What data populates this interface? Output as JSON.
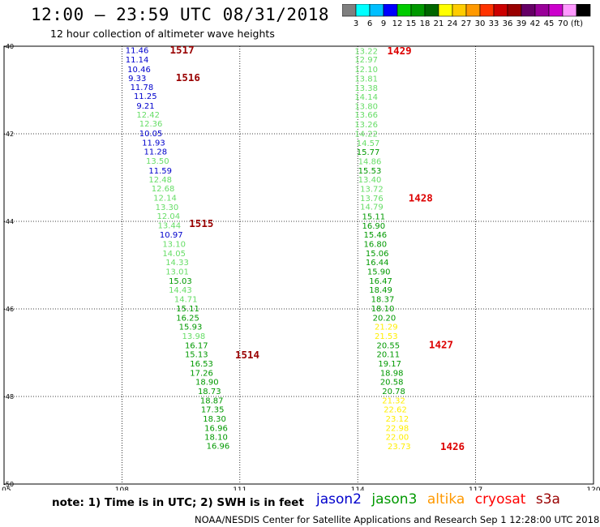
{
  "title": "12:00 — 23:59 UTC 08/31/2018",
  "subtitle": "12 hour collection of altimeter wave heights",
  "colorbar": {
    "colors": [
      "#7f7f7f",
      "#00ffff",
      "#00bfff",
      "#0000ff",
      "#00cc00",
      "#009900",
      "#006600",
      "#ffff00",
      "#ffcc00",
      "#ff9900",
      "#ff3300",
      "#cc0000",
      "#990000",
      "#660066",
      "#990099",
      "#cc00cc",
      "#ff99ff",
      "#000000"
    ],
    "labels": [
      "3",
      "6",
      "9",
      "12",
      "15",
      "18",
      "21",
      "24",
      "27",
      "30",
      "33",
      "36",
      "39",
      "42",
      "45",
      "70 (ft)"
    ]
  },
  "note": "note: 1) Time is in UTC; 2) SWH is in feet",
  "legend": [
    {
      "label": "jason2",
      "color": "#0000cc"
    },
    {
      "label": "jason3",
      "color": "#009900"
    },
    {
      "label": "altika",
      "color": "#ff9900"
    },
    {
      "label": "cryosat",
      "color": "#ff0000"
    },
    {
      "label": "s3a",
      "color": "#990000"
    }
  ],
  "credit": "NOAA/NESDIS Center for Satellite Applications and Research   Sep  1 12:28:00 UTC 2018",
  "chart_data": {
    "type": "scatter",
    "xlim": [
      105,
      120
    ],
    "ylim": [
      -50,
      -40
    ],
    "x_ticks": [
      "105",
      "108",
      "111",
      "114",
      "117",
      "120"
    ],
    "y_ticks": [
      "-40",
      "-42",
      "-44",
      "-46",
      "-48",
      "-50"
    ],
    "grid": true,
    "tracks": [
      {
        "points": [
          {
            "x": 108.09,
            "y": -40.08,
            "v": "11.46",
            "c": "#0000cc"
          },
          {
            "x": 108.09,
            "y": -40.3,
            "v": "11.14",
            "c": "#0000cc"
          },
          {
            "x": 108.14,
            "y": -40.52,
            "v": "10.46",
            "c": "#0000cc"
          },
          {
            "x": 108.16,
            "y": -40.72,
            "v": "9.33",
            "c": "#0000cc"
          },
          {
            "x": 108.21,
            "y": -40.93,
            "v": "11.78",
            "c": "#0000cc"
          },
          {
            "x": 108.3,
            "y": -41.13,
            "v": "11.25",
            "c": "#0000cc"
          },
          {
            "x": 108.37,
            "y": -41.35,
            "v": "9.21",
            "c": "#0000cc"
          },
          {
            "x": 108.37,
            "y": -41.56,
            "v": "12.42",
            "c": "#66dd66"
          },
          {
            "x": 108.44,
            "y": -41.76,
            "v": "12.36",
            "c": "#66dd66"
          },
          {
            "x": 108.44,
            "y": -41.98,
            "v": "10.05",
            "c": "#0000cc"
          },
          {
            "x": 108.51,
            "y": -42.19,
            "v": "11.93",
            "c": "#0000cc"
          },
          {
            "x": 108.56,
            "y": -42.4,
            "v": "11.28",
            "c": "#0000cc"
          },
          {
            "x": 108.61,
            "y": -42.61,
            "v": "13.50",
            "c": "#66dd66"
          },
          {
            "x": 108.68,
            "y": -42.83,
            "v": "11.59",
            "c": "#0000cc"
          },
          {
            "x": 108.68,
            "y": -43.04,
            "v": "12.48",
            "c": "#66dd66"
          },
          {
            "x": 108.75,
            "y": -43.24,
            "v": "12.68",
            "c": "#66dd66"
          },
          {
            "x": 108.8,
            "y": -43.45,
            "v": "12.14",
            "c": "#66dd66"
          },
          {
            "x": 108.85,
            "y": -43.67,
            "v": "13.30",
            "c": "#66dd66"
          },
          {
            "x": 108.89,
            "y": -43.87,
            "v": "12.04",
            "c": "#66dd66"
          },
          {
            "x": 108.91,
            "y": -44.08,
            "v": "13.44",
            "c": "#66dd66"
          },
          {
            "x": 108.96,
            "y": -44.3,
            "v": "10.97",
            "c": "#0000cc"
          },
          {
            "x": 109.03,
            "y": -44.51,
            "v": "13.10",
            "c": "#66dd66"
          },
          {
            "x": 109.03,
            "y": -44.72,
            "v": "14.05",
            "c": "#66dd66"
          },
          {
            "x": 109.11,
            "y": -44.93,
            "v": "14.33",
            "c": "#66dd66"
          },
          {
            "x": 109.11,
            "y": -45.14,
            "v": "13.01",
            "c": "#66dd66"
          },
          {
            "x": 109.19,
            "y": -45.35,
            "v": "15.03",
            "c": "#009900"
          },
          {
            "x": 109.19,
            "y": -45.56,
            "v": "14.43",
            "c": "#66dd66"
          },
          {
            "x": 109.33,
            "y": -45.77,
            "v": "14.71",
            "c": "#66dd66"
          },
          {
            "x": 109.38,
            "y": -45.98,
            "v": "15.11",
            "c": "#009900"
          },
          {
            "x": 109.38,
            "y": -46.19,
            "v": "16.25",
            "c": "#009900"
          },
          {
            "x": 109.45,
            "y": -46.4,
            "v": "15.93",
            "c": "#009900"
          },
          {
            "x": 109.53,
            "y": -46.61,
            "v": "13.98",
            "c": "#66dd66"
          },
          {
            "x": 109.6,
            "y": -46.82,
            "v": "16.17",
            "c": "#009900"
          },
          {
            "x": 109.6,
            "y": -47.03,
            "v": "15.13",
            "c": "#009900"
          },
          {
            "x": 109.73,
            "y": -47.24,
            "v": "16.53",
            "c": "#009900"
          },
          {
            "x": 109.73,
            "y": -47.45,
            "v": "17.26",
            "c": "#009900"
          },
          {
            "x": 109.87,
            "y": -47.66,
            "v": "18.90",
            "c": "#009900"
          },
          {
            "x": 109.93,
            "y": -47.87,
            "v": "18.73",
            "c": "#009900"
          },
          {
            "x": 109.99,
            "y": -48.08,
            "v": "18.87",
            "c": "#009900"
          },
          {
            "x": 110.01,
            "y": -48.29,
            "v": "17.35",
            "c": "#009900"
          },
          {
            "x": 110.06,
            "y": -48.5,
            "v": "18.30",
            "c": "#009900"
          },
          {
            "x": 110.1,
            "y": -48.71,
            "v": "16.96",
            "c": "#009900"
          },
          {
            "x": 110.1,
            "y": -48.92,
            "v": "18.10",
            "c": "#009900"
          },
          {
            "x": 110.15,
            "y": -49.12,
            "v": "16.96",
            "c": "#009900"
          }
        ],
        "times": [
          {
            "x": 109.22,
            "y": -40.07,
            "label": "1517",
            "c": "#990000"
          },
          {
            "x": 109.37,
            "y": -40.7,
            "label": "1516",
            "c": "#990000"
          },
          {
            "x": 109.71,
            "y": -44.04,
            "label": "1515",
            "c": "#990000"
          },
          {
            "x": 110.88,
            "y": -47.04,
            "label": "1514",
            "c": "#990000"
          }
        ]
      },
      {
        "points": [
          {
            "x": 113.92,
            "y": -40.1,
            "v": "13.22",
            "c": "#66dd66"
          },
          {
            "x": 113.92,
            "y": -40.3,
            "v": "12.97",
            "c": "#66dd66"
          },
          {
            "x": 113.92,
            "y": -40.52,
            "v": "12.10",
            "c": "#66dd66"
          },
          {
            "x": 113.92,
            "y": -40.73,
            "v": "13.81",
            "c": "#66dd66"
          },
          {
            "x": 113.92,
            "y": -40.94,
            "v": "13.38",
            "c": "#66dd66"
          },
          {
            "x": 113.92,
            "y": -41.15,
            "v": "14.14",
            "c": "#66dd66"
          },
          {
            "x": 113.92,
            "y": -41.36,
            "v": "13.80",
            "c": "#66dd66"
          },
          {
            "x": 113.92,
            "y": -41.56,
            "v": "13.66",
            "c": "#66dd66"
          },
          {
            "x": 113.92,
            "y": -41.78,
            "v": "13.26",
            "c": "#66dd66"
          },
          {
            "x": 113.92,
            "y": -41.99,
            "v": "14.22",
            "c": "#66dd66"
          },
          {
            "x": 113.97,
            "y": -42.2,
            "v": "14.57",
            "c": "#66dd66"
          },
          {
            "x": 113.97,
            "y": -42.41,
            "v": "15.77",
            "c": "#009900"
          },
          {
            "x": 114.01,
            "y": -42.62,
            "v": "14.86",
            "c": "#66dd66"
          },
          {
            "x": 114.01,
            "y": -42.83,
            "v": "15.53",
            "c": "#009900"
          },
          {
            "x": 114.01,
            "y": -43.04,
            "v": "13.40",
            "c": "#66dd66"
          },
          {
            "x": 114.06,
            "y": -43.25,
            "v": "13.72",
            "c": "#66dd66"
          },
          {
            "x": 114.06,
            "y": -43.46,
            "v": "13.76",
            "c": "#66dd66"
          },
          {
            "x": 114.06,
            "y": -43.66,
            "v": "14.79",
            "c": "#66dd66"
          },
          {
            "x": 114.11,
            "y": -43.88,
            "v": "15.11",
            "c": "#009900"
          },
          {
            "x": 114.11,
            "y": -44.09,
            "v": "16.90",
            "c": "#009900"
          },
          {
            "x": 114.15,
            "y": -44.3,
            "v": "15.46",
            "c": "#009900"
          },
          {
            "x": 114.15,
            "y": -44.51,
            "v": "16.80",
            "c": "#009900"
          },
          {
            "x": 114.2,
            "y": -44.72,
            "v": "15.06",
            "c": "#009900"
          },
          {
            "x": 114.2,
            "y": -44.93,
            "v": "16.44",
            "c": "#009900"
          },
          {
            "x": 114.24,
            "y": -45.14,
            "v": "15.90",
            "c": "#009900"
          },
          {
            "x": 114.29,
            "y": -45.35,
            "v": "16.47",
            "c": "#009900"
          },
          {
            "x": 114.29,
            "y": -45.56,
            "v": "18.49",
            "c": "#009900"
          },
          {
            "x": 114.34,
            "y": -45.77,
            "v": "18.37",
            "c": "#009900"
          },
          {
            "x": 114.34,
            "y": -45.98,
            "v": "18.10",
            "c": "#009900"
          },
          {
            "x": 114.38,
            "y": -46.19,
            "v": "20.20",
            "c": "#009900"
          },
          {
            "x": 114.43,
            "y": -46.4,
            "v": "21.29",
            "c": "#ffee00"
          },
          {
            "x": 114.43,
            "y": -46.61,
            "v": "21.53",
            "c": "#ffee00"
          },
          {
            "x": 114.48,
            "y": -46.82,
            "v": "20.55",
            "c": "#009900"
          },
          {
            "x": 114.48,
            "y": -47.03,
            "v": "20.11",
            "c": "#009900"
          },
          {
            "x": 114.52,
            "y": -47.24,
            "v": "19.17",
            "c": "#009900"
          },
          {
            "x": 114.57,
            "y": -47.45,
            "v": "18.98",
            "c": "#009900"
          },
          {
            "x": 114.57,
            "y": -47.66,
            "v": "20.58",
            "c": "#009900"
          },
          {
            "x": 114.62,
            "y": -47.87,
            "v": "20.78",
            "c": "#009900"
          },
          {
            "x": 114.62,
            "y": -48.08,
            "v": "21.32",
            "c": "#ffee00"
          },
          {
            "x": 114.66,
            "y": -48.29,
            "v": "22.62",
            "c": "#ffee00"
          },
          {
            "x": 114.71,
            "y": -48.5,
            "v": "23.12",
            "c": "#ffee00"
          },
          {
            "x": 114.71,
            "y": -48.71,
            "v": "22.98",
            "c": "#ffee00"
          },
          {
            "x": 114.71,
            "y": -48.92,
            "v": "22.00",
            "c": "#ffee00"
          },
          {
            "x": 114.76,
            "y": -49.13,
            "v": "23.73",
            "c": "#ffee00"
          }
        ],
        "times": [
          {
            "x": 114.75,
            "y": -40.09,
            "label": "1429",
            "c": "#dd0000"
          },
          {
            "x": 115.29,
            "y": -43.45,
            "label": "1428",
            "c": "#dd0000"
          },
          {
            "x": 115.81,
            "y": -46.81,
            "label": "1427",
            "c": "#dd0000"
          },
          {
            "x": 116.1,
            "y": -49.13,
            "label": "1426",
            "c": "#dd0000"
          }
        ]
      }
    ]
  }
}
